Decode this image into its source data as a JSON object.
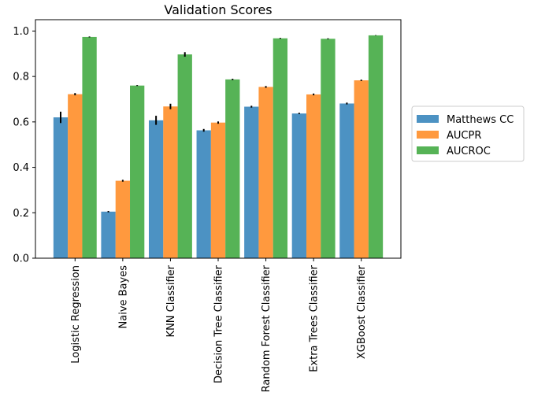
{
  "chart_data": {
    "type": "bar",
    "title": "Validation Scores",
    "xlabel": "",
    "ylabel": "",
    "ylim": [
      0,
      1.05
    ],
    "yticks": [
      "0.0",
      "0.2",
      "0.4",
      "0.6",
      "0.8",
      "1.0"
    ],
    "categories": [
      "Logistic Regression",
      "Naive Bayes",
      "KNN Classifier",
      "Decision Tree Classifier",
      "Random Forest Classifier",
      "Extra Trees Classifier",
      "XGBoost Classifier"
    ],
    "series": [
      {
        "name": "Matthews CC",
        "color": "#1f77b4",
        "values": [
          0.62,
          0.205,
          0.607,
          0.563,
          0.667,
          0.637,
          0.681
        ],
        "errors": [
          0.025,
          0.003,
          0.02,
          0.006,
          0.004,
          0.003,
          0.004
        ]
      },
      {
        "name": "AUCPR",
        "color": "#ff7f0e",
        "values": [
          0.722,
          0.341,
          0.668,
          0.597,
          0.754,
          0.721,
          0.783
        ],
        "errors": [
          0.005,
          0.004,
          0.012,
          0.005,
          0.004,
          0.004,
          0.003
        ]
      },
      {
        "name": "AUCROC",
        "color": "#2ca02c",
        "values": [
          0.974,
          0.76,
          0.897,
          0.787,
          0.968,
          0.966,
          0.981
        ],
        "errors": [
          0.002,
          0.002,
          0.01,
          0.003,
          0.002,
          0.002,
          0.001
        ]
      }
    ],
    "legend_position": "right, outside plot",
    "grid": false
  }
}
